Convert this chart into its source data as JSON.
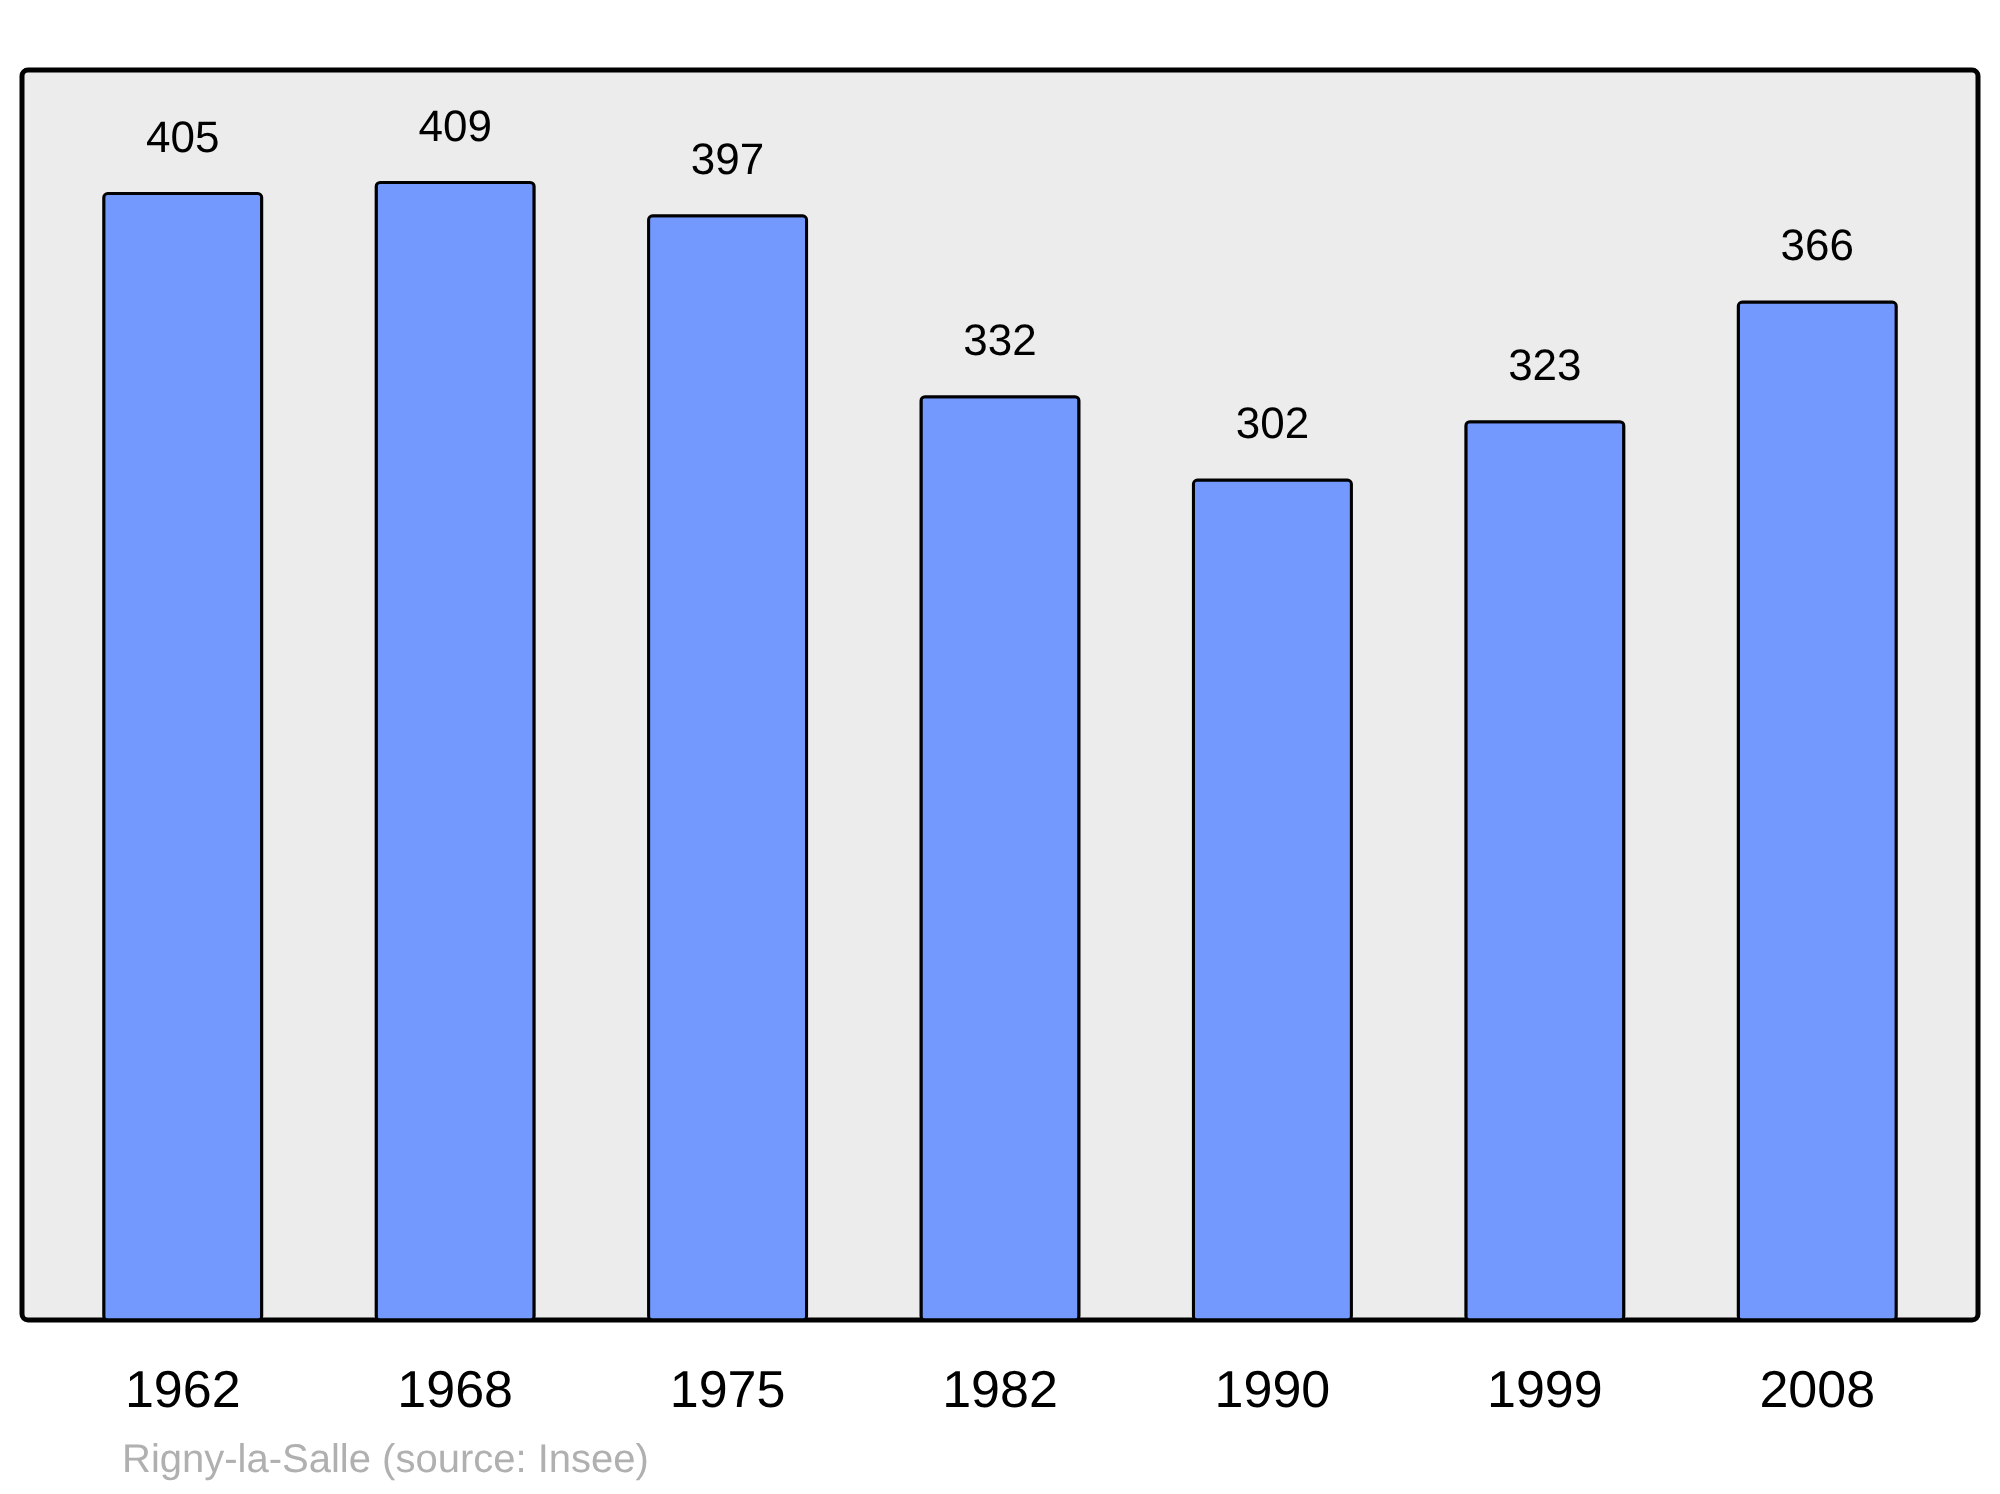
{
  "chart_data": {
    "type": "bar",
    "categories": [
      "1962",
      "1968",
      "1975",
      "1982",
      "1990",
      "1999",
      "2008"
    ],
    "values": [
      405,
      409,
      397,
      332,
      302,
      323,
      366
    ],
    "color": "#7399ff",
    "data_labels": true,
    "annotations": [
      "Rigny-la-Salle    (source: Insee)"
    ]
  }
}
